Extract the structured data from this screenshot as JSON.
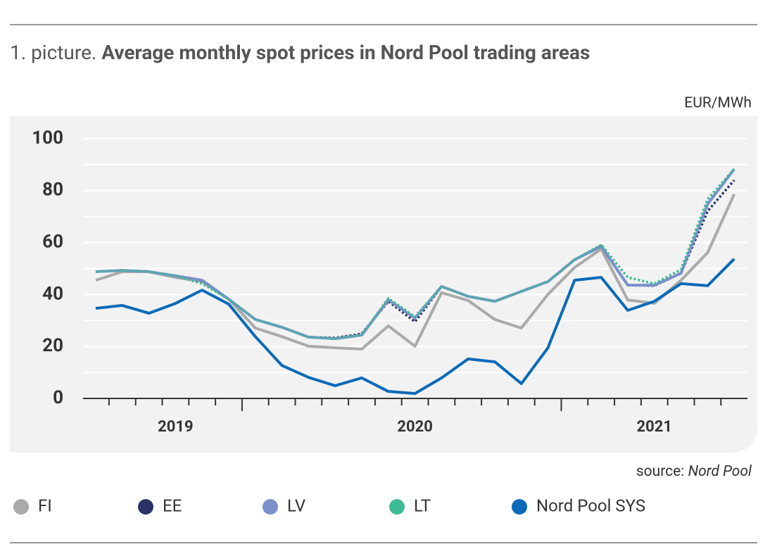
{
  "chart_data": {
    "type": "line",
    "label": "1. picture.",
    "title": "Average monthly spot prices in Nord Pool trading areas",
    "y_unit": "EUR/MWh",
    "source_label": "source:",
    "source": "Nord Pool",
    "categories": [
      null,
      null,
      null,
      "2019",
      null,
      null,
      null,
      null,
      null,
      null,
      null,
      null,
      "2020",
      null,
      null,
      null,
      null,
      null,
      null,
      null,
      null,
      "2021",
      null,
      null,
      null
    ],
    "series": [
      {
        "name": "FI",
        "color": "#aaaaaa",
        "style": "solid",
        "values": [
          45.5,
          48.8,
          48.8,
          46.6,
          45,
          38.2,
          27.1,
          23.8,
          20.1,
          19.5,
          19,
          27.9,
          20.1,
          40.7,
          37.7,
          30.4,
          27.1,
          40.1,
          50.4,
          57.5,
          37.9,
          36.6,
          45.5,
          56.1,
          78.6
        ]
      },
      {
        "name": "EE",
        "color": "#2b3467",
        "style": "dotted",
        "values": [
          48.8,
          49.3,
          48.8,
          47.2,
          45.3,
          38.2,
          30.4,
          27.4,
          23.6,
          23.3,
          24.9,
          37.4,
          29.5,
          43.1,
          39.3,
          37.4,
          41.2,
          45,
          53.4,
          58.8,
          43.6,
          43.4,
          48.2,
          72.1,
          84
        ]
      },
      {
        "name": "LV",
        "color": "#7b8fcb",
        "style": "solid",
        "values": [
          48.8,
          49.3,
          48.8,
          47.2,
          45.5,
          38.2,
          30.4,
          27.4,
          23.6,
          23,
          24.4,
          38,
          30.9,
          43.1,
          39.3,
          37.4,
          41.2,
          45,
          53.4,
          58.5,
          43.6,
          43.6,
          48.2,
          74.8,
          88.3
        ]
      },
      {
        "name": "LT",
        "color": "#3dbb94",
        "style": "dotted",
        "values": [
          48.8,
          49.3,
          48.8,
          47.2,
          44.2,
          38.2,
          30.4,
          27.4,
          23.6,
          23,
          24.4,
          38.5,
          31.4,
          43.1,
          39.3,
          37.4,
          41.2,
          45,
          53.4,
          59.1,
          46.6,
          44.2,
          49.6,
          76.7,
          88.3
        ]
      },
      {
        "name": "Nord Pool SYS",
        "color": "#0a6ab7",
        "style": "solid",
        "values": [
          34.7,
          35.8,
          32.8,
          36.6,
          41.7,
          36.3,
          23.8,
          12.7,
          8.1,
          4.9,
          7.9,
          2.7,
          1.9,
          7.9,
          15.2,
          14.1,
          5.7,
          19.5,
          45.5,
          46.6,
          33.9,
          37.4,
          44.2,
          43.4,
          53.7
        ]
      }
    ],
    "ylim": [
      0,
      100
    ],
    "yticks": [
      0,
      20,
      40,
      60,
      80,
      100
    ],
    "minor_yticks": [
      10,
      30,
      50,
      70,
      90
    ],
    "grid": true
  }
}
